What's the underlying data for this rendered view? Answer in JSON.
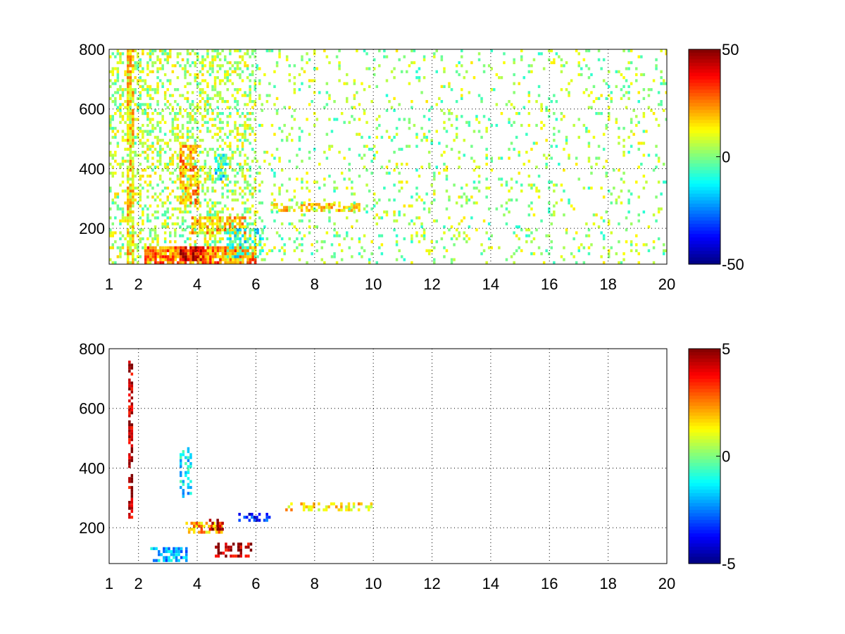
{
  "chart_data": [
    {
      "type": "heatmap",
      "title": "",
      "xlabel": "",
      "ylabel": "",
      "xlim": [
        1,
        20
      ],
      "ylim": [
        80,
        800
      ],
      "xticks": [
        "1",
        "2",
        "4",
        "6",
        "8",
        "10",
        "12",
        "14",
        "16",
        "18",
        "20"
      ],
      "xtick_values": [
        1,
        2,
        4,
        6,
        8,
        10,
        12,
        14,
        16,
        18,
        20
      ],
      "yticks": [
        "200",
        "400",
        "600",
        "800"
      ],
      "ytick_values": [
        200,
        400,
        600,
        800
      ],
      "grid": true,
      "colormap": "jet",
      "colorbar": {
        "min": -50,
        "max": 50,
        "ticks": [
          "50",
          "0",
          "-50"
        ],
        "tick_values": [
          50,
          0,
          -50
        ]
      },
      "features": [
        {
          "x": [
            1.0,
            6.0
          ],
          "y": [
            80,
            800
          ],
          "value": 5,
          "density": 0.35
        },
        {
          "x": [
            1.6,
            1.8
          ],
          "y": [
            80,
            800
          ],
          "value": 15,
          "density": 0.8
        },
        {
          "x": [
            2.2,
            6.0
          ],
          "y": [
            80,
            140
          ],
          "value": 25,
          "density": 0.8
        },
        {
          "x": [
            3.4,
            4.2
          ],
          "y": [
            90,
            140
          ],
          "value": 40,
          "density": 0.9
        },
        {
          "x": [
            3.4,
            4.0
          ],
          "y": [
            280,
            480
          ],
          "value": 22,
          "density": 0.6
        },
        {
          "x": [
            4.6,
            5.0
          ],
          "y": [
            360,
            450
          ],
          "value": -12,
          "density": 0.6
        },
        {
          "x": [
            3.8,
            5.6
          ],
          "y": [
            180,
            240
          ],
          "value": 20,
          "density": 0.6
        },
        {
          "x": [
            5.0,
            6.2
          ],
          "y": [
            100,
            200
          ],
          "value": -10,
          "density": 0.5
        },
        {
          "x": [
            6.5,
            9.5
          ],
          "y": [
            255,
            285
          ],
          "value": 15,
          "density": 0.6
        },
        {
          "x": [
            6.0,
            20.0
          ],
          "y": [
            80,
            800
          ],
          "value": 3,
          "density": 0.1
        }
      ]
    },
    {
      "type": "heatmap",
      "title": "",
      "xlabel": "",
      "ylabel": "",
      "xlim": [
        1,
        20
      ],
      "ylim": [
        80,
        800
      ],
      "xticks": [
        "1",
        "2",
        "4",
        "6",
        "8",
        "10",
        "12",
        "14",
        "16",
        "18",
        "20"
      ],
      "xtick_values": [
        1,
        2,
        4,
        6,
        8,
        10,
        12,
        14,
        16,
        18,
        20
      ],
      "yticks": [
        "200",
        "400",
        "600",
        "800"
      ],
      "ytick_values": [
        200,
        400,
        600,
        800
      ],
      "grid": true,
      "colormap": "jet",
      "colorbar": {
        "min": -5,
        "max": 5,
        "ticks": [
          "5",
          "0",
          "-5"
        ],
        "tick_values": [
          5,
          0,
          -5
        ]
      },
      "features": [
        {
          "x": [
            1.65,
            1.75
          ],
          "y": [
            230,
            760
          ],
          "value": 4.5,
          "density": 0.7
        },
        {
          "x": [
            2.4,
            3.6
          ],
          "y": [
            85,
            130
          ],
          "value": -2,
          "density": 0.6
        },
        {
          "x": [
            3.4,
            3.8
          ],
          "y": [
            300,
            470
          ],
          "value": -1.5,
          "density": 0.4
        },
        {
          "x": [
            3.6,
            4.8
          ],
          "y": [
            180,
            220
          ],
          "value": 2,
          "density": 0.6
        },
        {
          "x": [
            4.4,
            4.9
          ],
          "y": [
            190,
            230
          ],
          "value": 4.5,
          "density": 0.5
        },
        {
          "x": [
            4.6,
            5.8
          ],
          "y": [
            100,
            150
          ],
          "value": 4.5,
          "density": 0.5
        },
        {
          "x": [
            5.4,
            6.5
          ],
          "y": [
            220,
            250
          ],
          "value": -3.5,
          "density": 0.4
        },
        {
          "x": [
            7.0,
            10.0
          ],
          "y": [
            255,
            285
          ],
          "value": 1.5,
          "density": 0.4
        }
      ]
    }
  ]
}
